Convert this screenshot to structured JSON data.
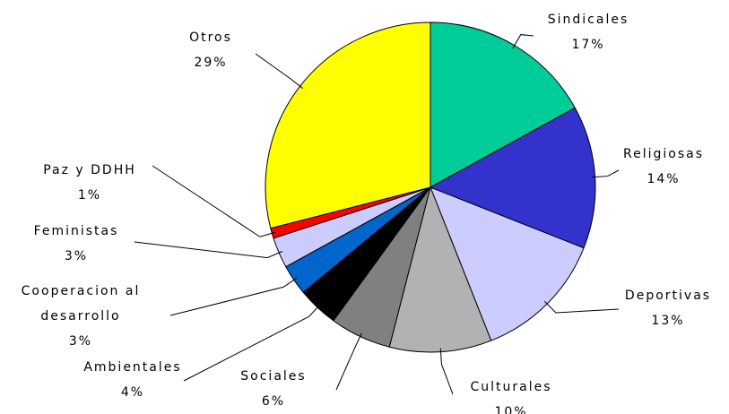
{
  "chart_data": {
    "type": "pie",
    "categories": [
      "Sindicales",
      "Religiosas",
      "Deportivas",
      "Culturales",
      "Sociales",
      "Ambientales",
      "Cooperacion al desarrollo",
      "Feministas",
      "Paz y DDHH",
      "Otros"
    ],
    "values": [
      17,
      14,
      13,
      10,
      6,
      4,
      3,
      3,
      1,
      29
    ],
    "value_labels": [
      "17%",
      "14%",
      "13%",
      "10%",
      "6%",
      "4%",
      "3%",
      "3%",
      "1%",
      "29%"
    ],
    "colors": [
      "#00cc99",
      "#3333cc",
      "#ccccff",
      "#b2b2b2",
      "#808080",
      "#000000",
      "#0066cc",
      "#ccccff",
      "#ff0000",
      "#ffff00"
    ]
  }
}
